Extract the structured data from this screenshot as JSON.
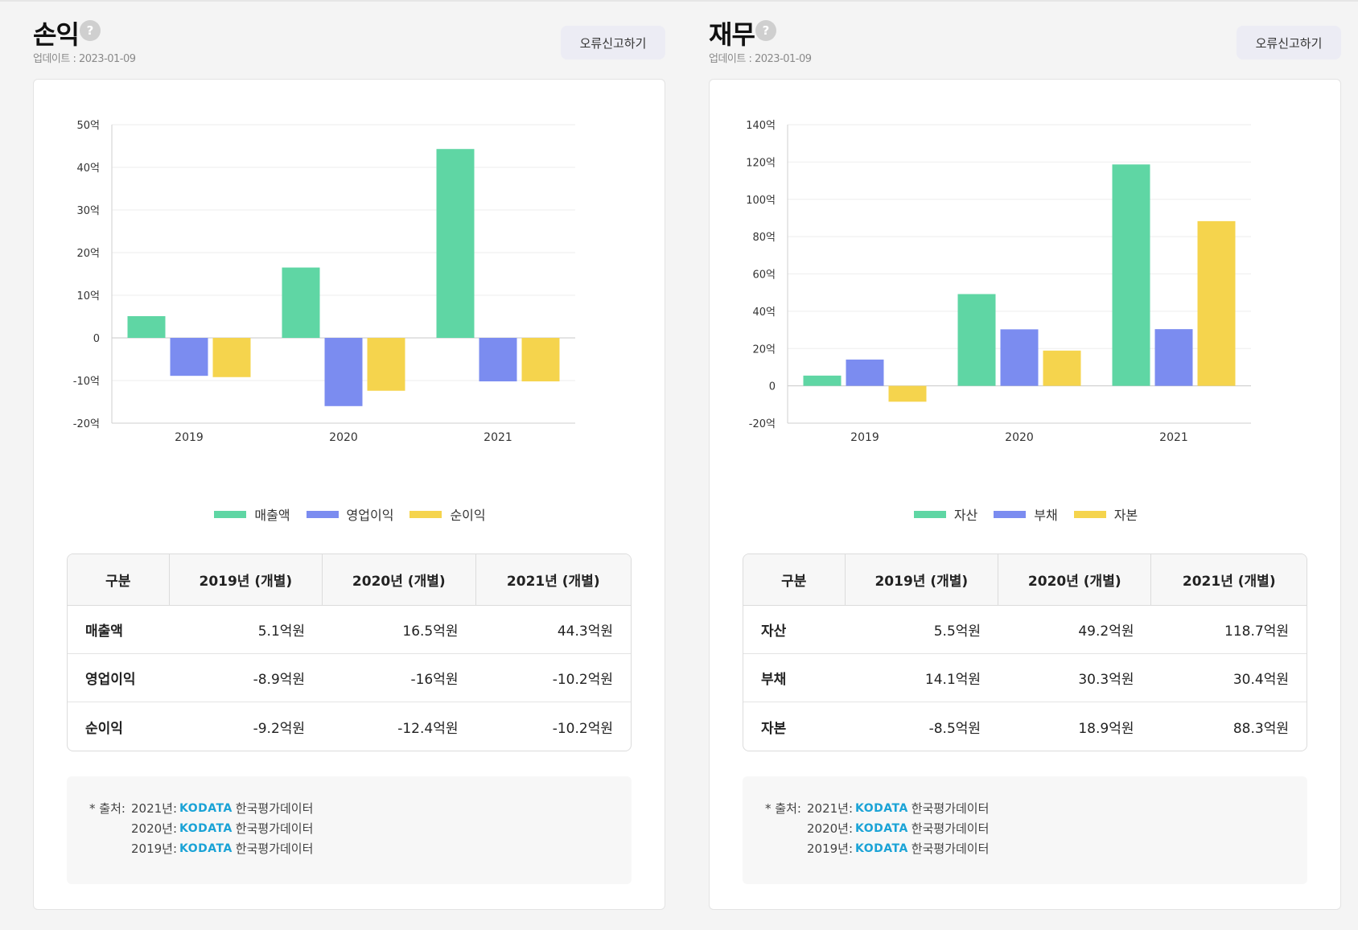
{
  "panels": [
    {
      "title": "손익",
      "help_icon": "?",
      "updated": "업데이트 : 2023-01-09",
      "report_button": "오류신고하기",
      "chart_data": {
        "type": "bar",
        "categories": [
          "2019",
          "2020",
          "2021"
        ],
        "series": [
          {
            "name": "매출액",
            "values": [
              5.1,
              16.5,
              44.3
            ]
          },
          {
            "name": "영업이익",
            "values": [
              -8.9,
              -16,
              -10.2
            ]
          },
          {
            "name": "순이익",
            "values": [
              -9.2,
              -12.4,
              -10.2
            ]
          }
        ],
        "yticks": [
          50,
          40,
          30,
          20,
          10,
          0,
          -10,
          -20
        ],
        "ytick_labels": [
          "50억",
          "40억",
          "30억",
          "20억",
          "10억",
          "0",
          "-10억",
          "-20억"
        ],
        "ylim": [
          -20,
          50
        ],
        "unit": "억",
        "colors": [
          "#5fd6a4",
          "#7b8cf0",
          "#f5d44d"
        ]
      },
      "table": {
        "headers": [
          "구분",
          "2019년 (개별)",
          "2020년 (개별)",
          "2021년 (개별)"
        ],
        "rows": [
          {
            "label": "매출액",
            "values": [
              "5.1억원",
              "16.5억원",
              "44.3억원"
            ]
          },
          {
            "label": "영업이익",
            "values": [
              "-8.9억원",
              "-16억원",
              "-10.2억원"
            ]
          },
          {
            "label": "순이익",
            "values": [
              "-9.2억원",
              "-12.4억원",
              "-10.2억원"
            ]
          }
        ]
      },
      "source": {
        "label": "* 출처:",
        "rows": [
          {
            "year": "2021년:",
            "brand": "KODATA",
            "org": "한국평가데이터"
          },
          {
            "year": "2020년:",
            "brand": "KODATA",
            "org": "한국평가데이터"
          },
          {
            "year": "2019년:",
            "brand": "KODATA",
            "org": "한국평가데이터"
          }
        ]
      }
    },
    {
      "title": "재무",
      "help_icon": "?",
      "updated": "업데이트 : 2023-01-09",
      "report_button": "오류신고하기",
      "chart_data": {
        "type": "bar",
        "categories": [
          "2019",
          "2020",
          "2021"
        ],
        "series": [
          {
            "name": "자산",
            "values": [
              5.5,
              49.2,
              118.7
            ]
          },
          {
            "name": "부채",
            "values": [
              14.1,
              30.3,
              30.4
            ]
          },
          {
            "name": "자본",
            "values": [
              -8.5,
              18.9,
              88.3
            ]
          }
        ],
        "yticks": [
          140,
          120,
          100,
          80,
          60,
          40,
          20,
          0,
          -20
        ],
        "ytick_labels": [
          "140억",
          "120억",
          "100억",
          "80억",
          "60억",
          "40억",
          "20억",
          "0",
          "-20억"
        ],
        "ylim": [
          -20,
          140
        ],
        "unit": "억",
        "colors": [
          "#5fd6a4",
          "#7b8cf0",
          "#f5d44d"
        ]
      },
      "table": {
        "headers": [
          "구분",
          "2019년 (개별)",
          "2020년 (개별)",
          "2021년 (개별)"
        ],
        "rows": [
          {
            "label": "자산",
            "values": [
              "5.5억원",
              "49.2억원",
              "118.7억원"
            ]
          },
          {
            "label": "부채",
            "values": [
              "14.1억원",
              "30.3억원",
              "30.4억원"
            ]
          },
          {
            "label": "자본",
            "values": [
              "-8.5억원",
              "18.9억원",
              "88.3억원"
            ]
          }
        ]
      },
      "source": {
        "label": "* 출처:",
        "rows": [
          {
            "year": "2021년:",
            "brand": "KODATA",
            "org": "한국평가데이터"
          },
          {
            "year": "2020년:",
            "brand": "KODATA",
            "org": "한국평가데이터"
          },
          {
            "year": "2019년:",
            "brand": "KODATA",
            "org": "한국평가데이터"
          }
        ]
      }
    }
  ]
}
